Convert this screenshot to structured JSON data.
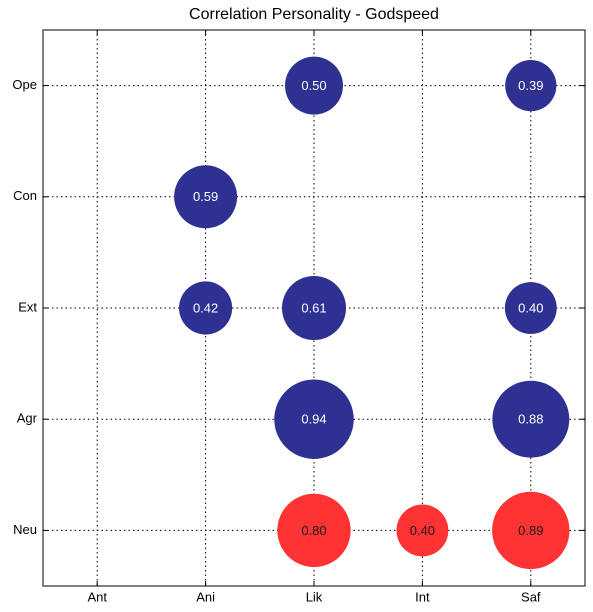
{
  "chart_data": {
    "type": "bubble_matrix",
    "title": "Correlation Personality - Godspeed",
    "x_categories": [
      "Ant",
      "Ani",
      "Lik",
      "Int",
      "Saf"
    ],
    "y_categories": [
      "Ope",
      "Con",
      "Ext",
      "Agr",
      "Neu"
    ],
    "grid": true,
    "points": [
      {
        "x": "Lik",
        "y": "Ope",
        "value": 0.5,
        "label": "0.50",
        "color": "#2e3192",
        "label_color": "#ffffff"
      },
      {
        "x": "Saf",
        "y": "Ope",
        "value": 0.39,
        "label": "0.39",
        "color": "#2e3192",
        "label_color": "#ffffff"
      },
      {
        "x": "Ani",
        "y": "Con",
        "value": 0.59,
        "label": "0.59",
        "color": "#2e3192",
        "label_color": "#ffffff"
      },
      {
        "x": "Ani",
        "y": "Ext",
        "value": 0.42,
        "label": "0.42",
        "color": "#2e3192",
        "label_color": "#ffffff"
      },
      {
        "x": "Lik",
        "y": "Ext",
        "value": 0.61,
        "label": "0.61",
        "color": "#2e3192",
        "label_color": "#ffffff"
      },
      {
        "x": "Saf",
        "y": "Ext",
        "value": 0.4,
        "label": "0.40",
        "color": "#2e3192",
        "label_color": "#ffffff"
      },
      {
        "x": "Lik",
        "y": "Agr",
        "value": 0.94,
        "label": "0.94",
        "color": "#2e3192",
        "label_color": "#ffffff"
      },
      {
        "x": "Saf",
        "y": "Agr",
        "value": 0.88,
        "label": "0.88",
        "color": "#2e3192",
        "label_color": "#ffffff"
      },
      {
        "x": "Lik",
        "y": "Neu",
        "value": 0.8,
        "label": "0.80",
        "color": "#ff3333",
        "label_color": "#1a1a1a"
      },
      {
        "x": "Int",
        "y": "Neu",
        "value": 0.4,
        "label": "0.40",
        "color": "#ff3333",
        "label_color": "#1a1a1a"
      },
      {
        "x": "Saf",
        "y": "Neu",
        "value": 0.89,
        "label": "0.89",
        "color": "#ff3333",
        "label_color": "#1a1a1a"
      }
    ]
  }
}
